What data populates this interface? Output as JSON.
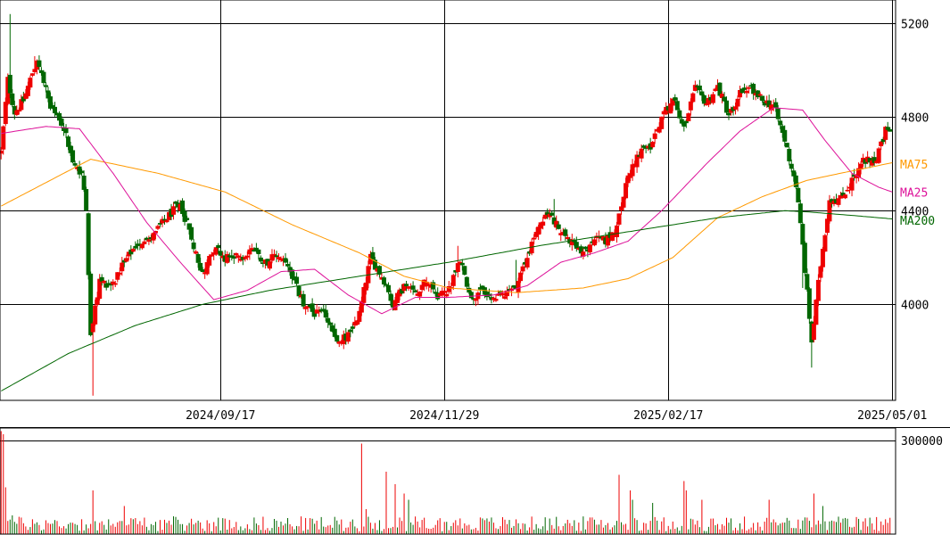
{
  "chart_data": [
    {
      "type": "candlestick",
      "y_ticks": [
        {
          "value": 5200,
          "label": "5200"
        },
        {
          "value": 4800,
          "label": "4800"
        },
        {
          "value": 4400,
          "label": "4400"
        },
        {
          "value": 4000,
          "label": "4000"
        }
      ],
      "ylim": [
        3590,
        5300
      ],
      "x_ticks": [
        {
          "index": 98,
          "label": "2024/09/17"
        },
        {
          "index": 198,
          "label": "2024/11/29"
        },
        {
          "index": 298,
          "label": "2025/02/17"
        },
        {
          "index": 398,
          "label": "2025/05/01"
        }
      ],
      "bar_count": 400,
      "colors": {
        "up": "#ee0000",
        "down": "#006600",
        "ma75": "#ff9900",
        "ma25": "#dd1199",
        "ma200": "#006600",
        "grid": "#000000"
      },
      "series": [
        {
          "name": "MA75",
          "label_value": 4600,
          "knots": [
            [
              0,
              4420
            ],
            [
              40,
              4620
            ],
            [
              70,
              4560
            ],
            [
              100,
              4480
            ],
            [
              130,
              4340
            ],
            [
              160,
              4220
            ],
            [
              180,
              4120
            ],
            [
              200,
              4070
            ],
            [
              230,
              4050
            ],
            [
              260,
              4070
            ],
            [
              280,
              4110
            ],
            [
              300,
              4200
            ],
            [
              320,
              4370
            ],
            [
              340,
              4460
            ],
            [
              360,
              4530
            ],
            [
              380,
              4570
            ],
            [
              398,
              4605
            ]
          ]
        },
        {
          "name": "MA25",
          "label_value": 4480,
          "knots": [
            [
              0,
              4730
            ],
            [
              20,
              4760
            ],
            [
              35,
              4750
            ],
            [
              50,
              4560
            ],
            [
              65,
              4350
            ],
            [
              80,
              4180
            ],
            [
              95,
              4020
            ],
            [
              110,
              4060
            ],
            [
              125,
              4140
            ],
            [
              140,
              4150
            ],
            [
              155,
              4040
            ],
            [
              170,
              3960
            ],
            [
              185,
              4030
            ],
            [
              200,
              4030
            ],
            [
              220,
              4040
            ],
            [
              235,
              4080
            ],
            [
              250,
              4180
            ],
            [
              265,
              4220
            ],
            [
              280,
              4270
            ],
            [
              295,
              4400
            ],
            [
              315,
              4600
            ],
            [
              330,
              4740
            ],
            [
              345,
              4840
            ],
            [
              358,
              4830
            ],
            [
              368,
              4700
            ],
            [
              380,
              4560
            ],
            [
              392,
              4500
            ],
            [
              398,
              4480
            ]
          ]
        },
        {
          "name": "MA200",
          "label_value": 4360,
          "knots": [
            [
              0,
              3630
            ],
            [
              30,
              3790
            ],
            [
              60,
              3910
            ],
            [
              90,
              4000
            ],
            [
              120,
              4060
            ],
            [
              160,
              4120
            ],
            [
              200,
              4180
            ],
            [
              240,
              4250
            ],
            [
              280,
              4310
            ],
            [
              320,
              4370
            ],
            [
              340,
              4390
            ],
            [
              350,
              4400
            ],
            [
              360,
              4395
            ],
            [
              380,
              4380
            ],
            [
              398,
              4365
            ]
          ]
        }
      ],
      "close_knots": [
        [
          0,
          4650
        ],
        [
          3,
          4960
        ],
        [
          6,
          4820
        ],
        [
          10,
          4870
        ],
        [
          16,
          5050
        ],
        [
          22,
          4840
        ],
        [
          28,
          4760
        ],
        [
          32,
          4600
        ],
        [
          36,
          4560
        ],
        [
          38,
          4420
        ],
        [
          40,
          3860
        ],
        [
          44,
          4100
        ],
        [
          50,
          4080
        ],
        [
          55,
          4180
        ],
        [
          60,
          4250
        ],
        [
          68,
          4300
        ],
        [
          75,
          4380
        ],
        [
          80,
          4430
        ],
        [
          85,
          4280
        ],
        [
          90,
          4130
        ],
        [
          95,
          4240
        ],
        [
          100,
          4200
        ],
        [
          106,
          4200
        ],
        [
          112,
          4230
        ],
        [
          118,
          4180
        ],
        [
          124,
          4210
        ],
        [
          130,
          4120
        ],
        [
          135,
          4000
        ],
        [
          140,
          3960
        ],
        [
          145,
          3950
        ],
        [
          150,
          3830
        ],
        [
          155,
          3870
        ],
        [
          160,
          3960
        ],
        [
          165,
          4200
        ],
        [
          170,
          4120
        ],
        [
          175,
          4000
        ],
        [
          180,
          4080
        ],
        [
          185,
          4050
        ],
        [
          190,
          4110
        ],
        [
          195,
          4040
        ],
        [
          200,
          4060
        ],
        [
          205,
          4190
        ],
        [
          210,
          4020
        ],
        [
          215,
          4060
        ],
        [
          220,
          4010
        ],
        [
          225,
          4050
        ],
        [
          230,
          4070
        ],
        [
          235,
          4200
        ],
        [
          240,
          4340
        ],
        [
          245,
          4390
        ],
        [
          250,
          4310
        ],
        [
          255,
          4260
        ],
        [
          260,
          4210
        ],
        [
          265,
          4280
        ],
        [
          270,
          4270
        ],
        [
          275,
          4330
        ],
        [
          280,
          4560
        ],
        [
          285,
          4640
        ],
        [
          290,
          4680
        ],
        [
          295,
          4800
        ],
        [
          300,
          4880
        ],
        [
          305,
          4760
        ],
        [
          310,
          4920
        ],
        [
          315,
          4860
        ],
        [
          320,
          4930
        ],
        [
          325,
          4810
        ],
        [
          330,
          4900
        ],
        [
          335,
          4920
        ],
        [
          340,
          4870
        ],
        [
          345,
          4850
        ],
        [
          350,
          4700
        ],
        [
          355,
          4510
        ],
        [
          358,
          4250
        ],
        [
          362,
          3840
        ],
        [
          366,
          4170
        ],
        [
          370,
          4450
        ],
        [
          375,
          4450
        ],
        [
          380,
          4530
        ],
        [
          385,
          4620
        ],
        [
          390,
          4600
        ],
        [
          395,
          4740
        ],
        [
          398,
          4760
        ]
      ],
      "spikes": [
        [
          4,
          1,
          5240
        ],
        [
          15,
          1,
          5060
        ],
        [
          41,
          0,
          3610
        ],
        [
          362,
          0,
          3730
        ],
        [
          363,
          1,
          3950
        ],
        [
          358,
          0,
          4070
        ],
        [
          365,
          0,
          4050
        ],
        [
          230,
          1,
          4190
        ],
        [
          247,
          1,
          4450
        ],
        [
          204,
          1,
          4250
        ]
      ]
    },
    {
      "type": "bar",
      "y_ticks": [
        {
          "value": 300000,
          "label": "300000"
        }
      ],
      "ylim": [
        0,
        340000
      ],
      "base_volume": 30000,
      "volume_spikes": [
        [
          0,
          330000
        ],
        [
          1,
          320000
        ],
        [
          2,
          150000
        ],
        [
          5,
          60000
        ],
        [
          41,
          140000
        ],
        [
          55,
          90000
        ],
        [
          161,
          290000
        ],
        [
          163,
          80000
        ],
        [
          172,
          200000
        ],
        [
          176,
          160000
        ],
        [
          180,
          130000
        ],
        [
          182,
          110000
        ],
        [
          276,
          190000
        ],
        [
          281,
          140000
        ],
        [
          282,
          110000
        ],
        [
          291,
          100000
        ],
        [
          305,
          170000
        ],
        [
          306,
          140000
        ],
        [
          313,
          110000
        ],
        [
          343,
          110000
        ],
        [
          363,
          130000
        ],
        [
          367,
          90000
        ]
      ]
    }
  ]
}
